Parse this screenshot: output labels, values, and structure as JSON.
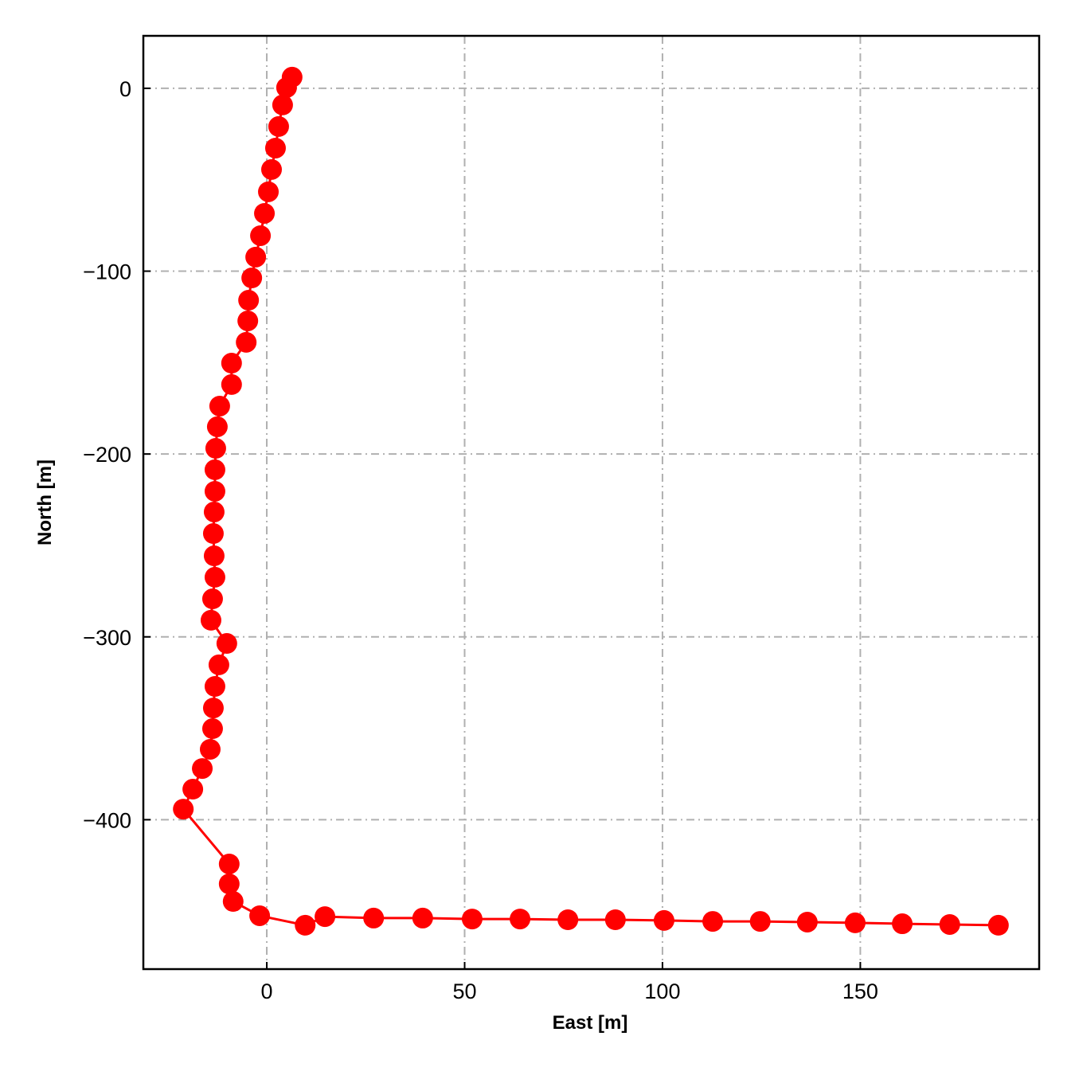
{
  "chart_data": {
    "type": "line",
    "x_label": "East [m]",
    "y_label": "North [m]",
    "x": [
      6.4,
      5.0,
      4.0,
      3.0,
      2.2,
      1.2,
      0.4,
      -0.6,
      -1.6,
      -2.8,
      -3.8,
      -4.6,
      -4.8,
      -5.2,
      -8.9,
      -8.9,
      -11.9,
      -12.5,
      -12.9,
      -13.1,
      -13.1,
      -13.3,
      -13.5,
      -13.3,
      -13.1,
      -13.7,
      -14.1,
      -10.1,
      -12.1,
      -13.1,
      -13.5,
      -13.7,
      -14.3,
      -16.3,
      -18.7,
      -21.1,
      -9.5,
      -9.5,
      -8.5,
      -1.8,
      9.7,
      14.7,
      27.0,
      39.4,
      51.9,
      64.0,
      76.1,
      88.1,
      100.4,
      112.7,
      124.7,
      136.6,
      148.7,
      160.6,
      172.6,
      184.9
    ],
    "series": [
      {
        "color": "#ff0000",
        "values": [
          6.1,
          0.4,
          -9.1,
          -20.9,
          -32.7,
          -44.4,
          -56.6,
          -68.4,
          -80.6,
          -92.3,
          -103.7,
          -115.9,
          -127.2,
          -138.9,
          -150.3,
          -162.0,
          -173.8,
          -185.1,
          -196.9,
          -208.6,
          -220.4,
          -231.7,
          -243.5,
          -255.7,
          -267.4,
          -279.2,
          -290.9,
          -303.6,
          -315.3,
          -327.1,
          -338.9,
          -350.2,
          -361.5,
          -372.0,
          -383.3,
          -394.2,
          -424.2,
          -435.1,
          -444.7,
          -452.5,
          -457.7,
          -453.0,
          -453.8,
          -453.8,
          -454.3,
          -454.3,
          -454.7,
          -454.7,
          -455.1,
          -455.6,
          -455.6,
          -456.0,
          -456.4,
          -456.9,
          -457.3,
          -457.7
        ]
      }
    ],
    "xlim": [
      -31.2,
      195.2
    ],
    "ylim": [
      -481.7,
      28.7
    ],
    "xticks": [
      0,
      50,
      100,
      150
    ],
    "yticks": [
      {
        "value": -400,
        "label": "−400"
      },
      {
        "value": -300,
        "label": "−300"
      },
      {
        "value": -200,
        "label": "−200"
      },
      {
        "value": -100,
        "label": "−100"
      },
      0
    ],
    "grid": true
  }
}
